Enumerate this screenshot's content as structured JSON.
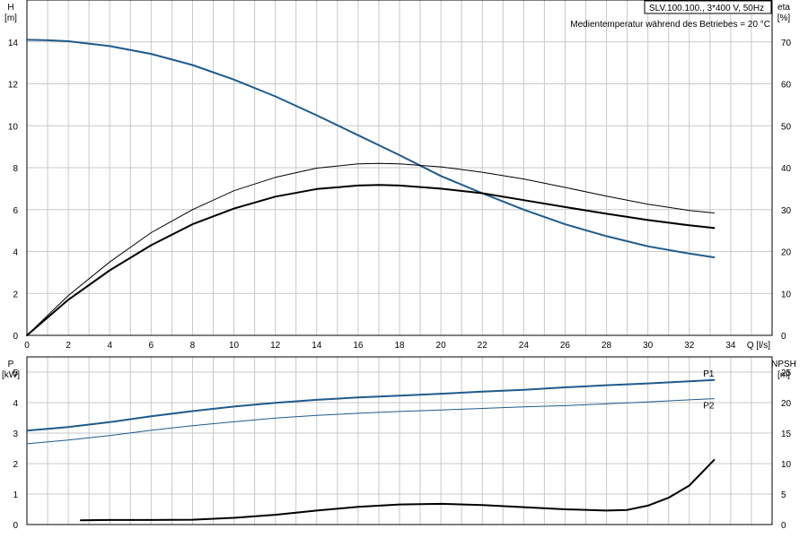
{
  "header": {
    "model": "SLV.100.100., 3*400 V, 50Hz",
    "condition": "Medientemperatur während des Betriebes = 20 °C"
  },
  "colors": {
    "blue": "#1f5a8c",
    "black": "#000000",
    "grid": "#c8c8c8"
  },
  "chart_data": [
    {
      "type": "line",
      "id": "head_efficiency",
      "x_label": "Q [l/s]",
      "x_ticks": [
        0,
        2,
        4,
        6,
        8,
        10,
        12,
        14,
        16,
        18,
        20,
        22,
        24,
        26,
        28,
        30,
        32,
        34
      ],
      "xlim": [
        0,
        36
      ],
      "grid": true,
      "y_left": {
        "label_top": "H",
        "label_unit": "[m]",
        "ticks": [
          0,
          2,
          4,
          6,
          8,
          10,
          12,
          14
        ],
        "ylim": [
          0,
          16
        ]
      },
      "y_right": {
        "label_top": "eta",
        "label_unit": "[%]",
        "ticks": [
          0,
          10,
          20,
          30,
          40,
          50,
          60,
          70
        ],
        "ylim": [
          0,
          80
        ]
      },
      "series": [
        {
          "axis": "left",
          "color": "#1f5a8c",
          "width": 2,
          "points": [
            [
              0,
              14.1
            ],
            [
              1,
              14.08
            ],
            [
              2,
              14.03
            ],
            [
              4,
              13.8
            ],
            [
              6,
              13.43
            ],
            [
              8,
              12.9
            ],
            [
              10,
              12.2
            ],
            [
              12,
              11.4
            ],
            [
              14,
              10.5
            ],
            [
              16,
              9.55
            ],
            [
              18,
              8.6
            ],
            [
              20,
              7.6
            ],
            [
              22,
              6.78
            ],
            [
              24,
              6.0
            ],
            [
              26,
              5.3
            ],
            [
              28,
              4.73
            ],
            [
              30,
              4.25
            ],
            [
              32,
              3.9
            ],
            [
              33.2,
              3.72
            ]
          ]
        },
        {
          "axis": "left",
          "color": "#000000",
          "width": 2,
          "points": [
            [
              0,
              0
            ],
            [
              2,
              1.7
            ],
            [
              4,
              3.1
            ],
            [
              6,
              4.3
            ],
            [
              8,
              5.3
            ],
            [
              10,
              6.05
            ],
            [
              12,
              6.62
            ],
            [
              14,
              6.98
            ],
            [
              16,
              7.15
            ],
            [
              17,
              7.18
            ],
            [
              18,
              7.15
            ],
            [
              20,
              7.0
            ],
            [
              22,
              6.78
            ],
            [
              24,
              6.45
            ],
            [
              26,
              6.12
            ],
            [
              28,
              5.8
            ],
            [
              30,
              5.5
            ],
            [
              32,
              5.25
            ],
            [
              33.2,
              5.12
            ]
          ]
        },
        {
          "axis": "right",
          "color": "#000000",
          "width": 1,
          "points": [
            [
              0,
              0
            ],
            [
              2,
              9.5
            ],
            [
              4,
              17.5
            ],
            [
              6,
              24.5
            ],
            [
              8,
              30.0
            ],
            [
              10,
              34.5
            ],
            [
              12,
              37.7
            ],
            [
              14,
              39.9
            ],
            [
              16,
              40.9
            ],
            [
              17,
              41.0
            ],
            [
              18,
              40.9
            ],
            [
              20,
              40.2
            ],
            [
              22,
              38.9
            ],
            [
              24,
              37.3
            ],
            [
              26,
              35.3
            ],
            [
              28,
              33.2
            ],
            [
              30,
              31.3
            ],
            [
              32,
              29.8
            ],
            [
              33.2,
              29.2
            ]
          ]
        }
      ]
    },
    {
      "type": "line",
      "id": "power_npsh",
      "x_ticks": [],
      "xlim": [
        0,
        36
      ],
      "grid": true,
      "y_left": {
        "label_top": "P",
        "label_unit": "[kW]",
        "ticks": [
          0,
          1,
          2,
          3,
          4,
          5
        ],
        "ylim": [
          0,
          5.5
        ]
      },
      "y_right": {
        "label_top": "NPSH",
        "label_unit": "[m]",
        "ticks": [
          0,
          5,
          10,
          15,
          20,
          25
        ],
        "ylim": [
          0,
          27.5
        ]
      },
      "series": [
        {
          "name": "P1",
          "axis": "left",
          "color": "#1f5a8c",
          "width": 2,
          "points": [
            [
              0,
              3.08
            ],
            [
              2,
              3.2
            ],
            [
              4,
              3.36
            ],
            [
              6,
              3.55
            ],
            [
              8,
              3.72
            ],
            [
              10,
              3.87
            ],
            [
              12,
              3.99
            ],
            [
              14,
              4.09
            ],
            [
              16,
              4.17
            ],
            [
              18,
              4.23
            ],
            [
              20,
              4.29
            ],
            [
              22,
              4.36
            ],
            [
              24,
              4.42
            ],
            [
              26,
              4.5
            ],
            [
              28,
              4.57
            ],
            [
              30,
              4.63
            ],
            [
              32,
              4.7
            ],
            [
              33.2,
              4.74
            ]
          ]
        },
        {
          "name": "P2",
          "axis": "left",
          "color": "#1f5a8c",
          "width": 1,
          "points": [
            [
              0,
              2.65
            ],
            [
              2,
              2.77
            ],
            [
              4,
              2.92
            ],
            [
              6,
              3.09
            ],
            [
              8,
              3.24
            ],
            [
              10,
              3.37
            ],
            [
              12,
              3.49
            ],
            [
              14,
              3.58
            ],
            [
              16,
              3.65
            ],
            [
              18,
              3.71
            ],
            [
              20,
              3.76
            ],
            [
              22,
              3.81
            ],
            [
              24,
              3.86
            ],
            [
              26,
              3.9
            ],
            [
              28,
              3.96
            ],
            [
              30,
              4.02
            ],
            [
              32,
              4.09
            ],
            [
              33.2,
              4.13
            ]
          ]
        },
        {
          "axis": "right",
          "color": "#000000",
          "width": 2,
          "points": [
            [
              2.6,
              0.7
            ],
            [
              4,
              0.75
            ],
            [
              6,
              0.75
            ],
            [
              8,
              0.8
            ],
            [
              10,
              1.1
            ],
            [
              12,
              1.6
            ],
            [
              14,
              2.3
            ],
            [
              16,
              2.9
            ],
            [
              18,
              3.3
            ],
            [
              20,
              3.4
            ],
            [
              22,
              3.2
            ],
            [
              24,
              2.85
            ],
            [
              26,
              2.5
            ],
            [
              28,
              2.3
            ],
            [
              29,
              2.4
            ],
            [
              30,
              3.1
            ],
            [
              31,
              4.4
            ],
            [
              32,
              6.4
            ],
            [
              33.2,
              10.6
            ]
          ]
        }
      ]
    }
  ]
}
